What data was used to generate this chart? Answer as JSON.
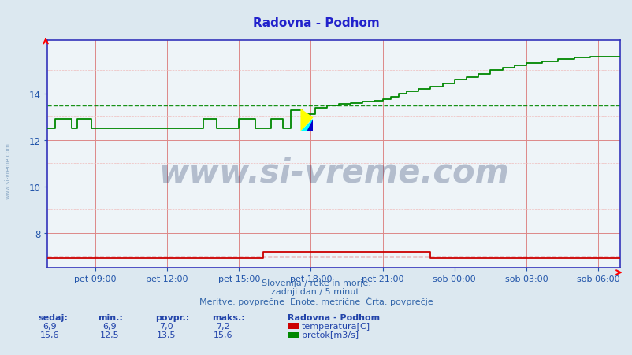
{
  "title": "Radovna - Podhom",
  "title_color": "#2222cc",
  "bg_color": "#dce8f0",
  "plot_bg_color": "#eef4f8",
  "grid_color": "#dd8888",
  "grid_minor_color": "#eebbbb",
  "axis_color": "#3333bb",
  "tick_color": "#2255aa",
  "ylim_min": 6.5,
  "ylim_max": 16.3,
  "yticks": [
    8,
    10,
    12,
    14
  ],
  "xlabel_ticks": [
    "pet 09:00",
    "pet 12:00",
    "pet 15:00",
    "pet 18:00",
    "pet 21:00",
    "sob 00:00",
    "sob 03:00",
    "sob 06:00"
  ],
  "n_points": 288,
  "temp_color": "#cc0000",
  "flow_color": "#008800",
  "temp_avg": 7.0,
  "flow_avg": 13.5,
  "watermark_text": "www.si-vreme.com",
  "watermark_color": "#1a3060",
  "watermark_alpha": 0.28,
  "watermark_fontsize": 30,
  "footer_line1": "Slovenija / reke in morje.",
  "footer_line2": "zadnji dan / 5 minut.",
  "footer_line3": "Meritve: povprečne  Enote: metrične  Črta: povprečje",
  "footer_color": "#3366aa",
  "sidebar_text": "www.si-vreme.com",
  "sidebar_color": "#7799bb",
  "col_labels": [
    "sedaj:",
    "min.:",
    "povpr.:",
    "maks.:"
  ],
  "temp_vals": [
    "6,9",
    "6,9",
    "7,0",
    "7,2"
  ],
  "flow_vals": [
    "15,6",
    "12,5",
    "13,5",
    "15,6"
  ],
  "legend_title": "Radovna - Podhom",
  "legend_temp": "temperatura[C]",
  "legend_flow": "pretok[m3/s]"
}
